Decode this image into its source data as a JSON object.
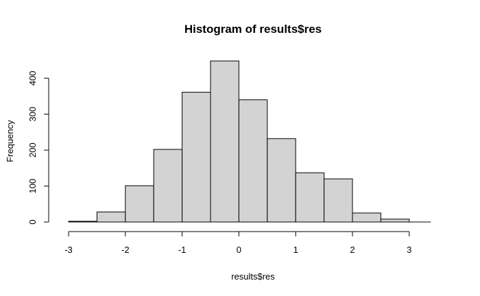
{
  "chart_data": {
    "type": "bar",
    "title": "Histogram of results$res",
    "xlabel": "results$res",
    "ylabel": "Frequency",
    "bins": [
      {
        "x0": -3.0,
        "x1": -2.5,
        "count": 2
      },
      {
        "x0": -2.5,
        "x1": -2.0,
        "count": 28
      },
      {
        "x0": -2.0,
        "x1": -1.5,
        "count": 101
      },
      {
        "x0": -1.5,
        "x1": -1.0,
        "count": 202
      },
      {
        "x0": -1.0,
        "x1": -0.5,
        "count": 361
      },
      {
        "x0": -0.5,
        "x1": 0.0,
        "count": 448
      },
      {
        "x0": 0.0,
        "x1": 0.5,
        "count": 340
      },
      {
        "x0": 0.5,
        "x1": 1.0,
        "count": 232
      },
      {
        "x0": 1.0,
        "x1": 1.5,
        "count": 137
      },
      {
        "x0": 1.5,
        "x1": 2.0,
        "count": 120
      },
      {
        "x0": 2.0,
        "x1": 2.5,
        "count": 25
      },
      {
        "x0": 2.5,
        "x1": 3.0,
        "count": 8
      }
    ],
    "x_ticks": [
      -3,
      -2,
      -1,
      0,
      1,
      2,
      3
    ],
    "y_ticks": [
      0,
      100,
      200,
      300,
      400
    ],
    "xlim": [
      -3,
      3.5
    ],
    "ylim": [
      0,
      448
    ],
    "bar_fill": "#d3d3d3",
    "bar_stroke": "#000000",
    "grid": false,
    "legend": "none"
  }
}
